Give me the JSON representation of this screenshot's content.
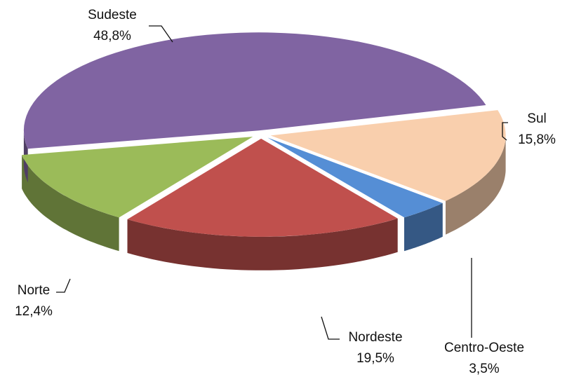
{
  "chart_data": {
    "type": "pie3d",
    "categories": [
      "Sul",
      "Centro-Oeste",
      "Nordeste",
      "Norte",
      "Sudeste"
    ],
    "values": [
      15.8,
      3.5,
      19.5,
      12.4,
      48.8
    ],
    "value_labels": [
      "15,8%",
      "3,5%",
      "19,5%",
      "12,4%",
      "48,8%"
    ],
    "colors": [
      "#f9cfad",
      "#558ed5",
      "#c0504d",
      "#9bbb59",
      "#8064a2"
    ]
  }
}
